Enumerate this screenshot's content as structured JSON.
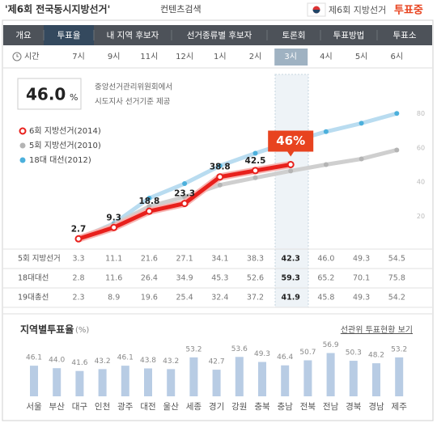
{
  "header": {
    "title": "'제6회 전국동시지방선거'",
    "subtitle": "컨텐츠검색",
    "badge": "제6회 지방선거",
    "status": "투표중"
  },
  "tabs": [
    "개요",
    "투표율",
    "내 지역 후보자",
    "선거종류별 후보자",
    "토론회",
    "투표방법",
    "투표소"
  ],
  "active_tab": 1,
  "time_label": "시간",
  "summary": {
    "value": "46.0",
    "unit": "%",
    "source": [
      "중앙선거관리위원회에서",
      "시도지사 선거기준 제공"
    ]
  },
  "chart_data": [
    {
      "type": "line",
      "categories": [
        "7시",
        "9시",
        "11시",
        "12시",
        "1시",
        "2시",
        "3시",
        "4시",
        "5시",
        "6시"
      ],
      "highlight_index": 6,
      "series": [
        {
          "name": "6회 지방선거(2014)",
          "color": "#e8201c",
          "values": [
            2.7,
            9.3,
            18.8,
            23.3,
            38.8,
            42.5,
            46,
            null,
            null,
            null
          ],
          "value_labels": [
            "2.7",
            "9.3",
            "18.8",
            "23.3",
            "38.8",
            "42.5",
            "46%",
            null,
            null,
            null
          ]
        },
        {
          "name": "5회 지방선거(2010)",
          "color": "#b4b4b4",
          "values": [
            3.3,
            11.1,
            21.6,
            27.1,
            34.1,
            38.3,
            42.3,
            46.0,
            49.3,
            54.5
          ],
          "value_labels": [
            "3.3",
            "11.1",
            "21.6",
            "27.1",
            "34.1",
            "38.3",
            "42.3",
            "46.0",
            "49.3",
            "54.5"
          ]
        },
        {
          "name": "18대 대선(2012)",
          "color": "#4cb0dc",
          "values": [
            2.8,
            11.6,
            26.4,
            34.9,
            45.3,
            52.6,
            59.3,
            65.2,
            70.1,
            75.8
          ]
        }
      ],
      "ylim": [
        0,
        100
      ],
      "yticks": [
        20,
        40,
        60,
        80
      ]
    },
    {
      "type": "bar",
      "title": "지역별투표율",
      "unit": "(%)",
      "categories": [
        "서울",
        "부산",
        "대구",
        "인천",
        "광주",
        "대전",
        "울산",
        "세종",
        "경기",
        "강원",
        "충북",
        "충남",
        "전북",
        "전남",
        "경북",
        "경남",
        "제주"
      ],
      "values": [
        46.1,
        44.0,
        41.6,
        43.2,
        46.1,
        43.8,
        43.2,
        53.2,
        42.7,
        53.6,
        49.3,
        46.4,
        50.7,
        56.9,
        50.3,
        48.2,
        53.2
      ],
      "value_labels": [
        "46.1",
        "44.0",
        "41.6",
        "43.2",
        "46.1",
        "43.8",
        "43.2",
        "53.2",
        "42.7",
        "53.6",
        "49.3",
        "46.4",
        "50.7",
        "56.9",
        "50.3",
        "48.2",
        "53.2"
      ],
      "color": "#b8cce4",
      "ylim": [
        20,
        60
      ]
    }
  ],
  "table": {
    "row_labels": [
      "5회 지방선거",
      "18대대선",
      "19대총선"
    ],
    "third_row_values": [
      2.3,
      8.9,
      19.6,
      25.4,
      32.4,
      37.2,
      41.9,
      45.8,
      49.3,
      54.2
    ]
  },
  "link": "선관위 투표현황 보기"
}
